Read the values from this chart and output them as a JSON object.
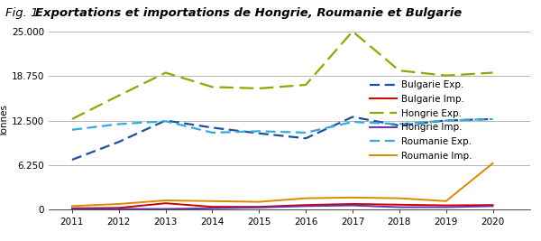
{
  "title_fig": "Fig. 1 ",
  "title_bold": "Exportations et importations de Hongrie, Roumanie et Bulgarie",
  "ylabel": "Tonnes",
  "years": [
    2011,
    2012,
    2013,
    2014,
    2015,
    2016,
    2017,
    2018,
    2019,
    2020
  ],
  "bulgarie_exp": [
    7000,
    9500,
    12500,
    11500,
    10700,
    10000,
    13000,
    11800,
    12500,
    12700
  ],
  "bulgarie_imp": [
    200,
    250,
    900,
    400,
    400,
    650,
    800,
    700,
    600,
    650
  ],
  "hongrie_exp": [
    12700,
    16000,
    19200,
    17200,
    17000,
    17500,
    25000,
    19500,
    18800,
    19200
  ],
  "hongrie_imp": [
    100,
    100,
    100,
    200,
    300,
    500,
    600,
    350,
    350,
    500
  ],
  "roumanie_exp": [
    11200,
    12000,
    12400,
    10800,
    11000,
    10800,
    12300,
    12000,
    12500,
    12700
  ],
  "roumanie_imp": [
    500,
    800,
    1300,
    1200,
    1100,
    1600,
    1700,
    1600,
    1200,
    6500
  ],
  "colors": {
    "bulgarie_exp": "#1a52a0",
    "bulgarie_imp": "#cc0000",
    "hongrie_exp": "#8aaa00",
    "hongrie_imp": "#6633aa",
    "roumanie_exp": "#33aadd",
    "roumanie_imp": "#dd8800"
  },
  "ylim": [
    0,
    25000
  ],
  "yticks": [
    0,
    6250,
    12500,
    18750,
    25000
  ],
  "ytick_labels": [
    "0",
    "6.250",
    "12.500",
    "18.750",
    "25.000"
  ],
  "background_color": "#ffffff",
  "title_fontsize": 9.5,
  "label_fontsize": 7.5,
  "tick_fontsize": 7.5,
  "legend_fontsize": 7.5
}
